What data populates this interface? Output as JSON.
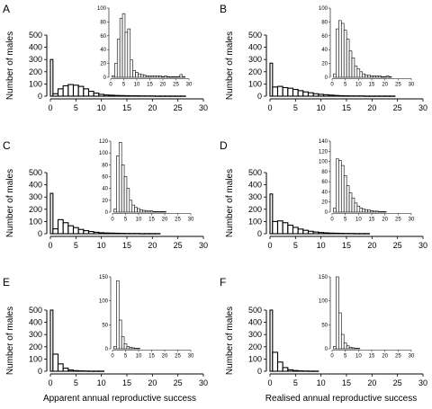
{
  "chart_data": [
    {
      "type": "bar",
      "panel": "A",
      "ylabel": "Number of males",
      "x": [
        0,
        1,
        2,
        3,
        4,
        5,
        6,
        7,
        8,
        9,
        10,
        11,
        12,
        13,
        14,
        15,
        16,
        17,
        18,
        19,
        20,
        21,
        22,
        23,
        24,
        25,
        26,
        27,
        28,
        29,
        30
      ],
      "values": [
        300,
        20,
        60,
        85,
        95,
        90,
        80,
        60,
        40,
        25,
        15,
        10,
        8,
        6,
        5,
        4,
        3,
        3,
        2,
        2,
        2,
        1,
        1,
        1,
        1,
        1,
        1,
        0,
        0,
        0,
        0
      ],
      "xlim": [
        0,
        30
      ],
      "ylim": [
        0,
        500
      ],
      "xticks": [
        "0",
        "5",
        "10",
        "15",
        "20",
        "25",
        "30"
      ],
      "yticks": [
        "0",
        "100",
        "200",
        "300",
        "400",
        "500"
      ],
      "inset": {
        "x": [
          1,
          2,
          3,
          4,
          5,
          6,
          7,
          8,
          9,
          10,
          11,
          12,
          13,
          14,
          15,
          16,
          17,
          18,
          19,
          20,
          21,
          22,
          23,
          24,
          25,
          26,
          27,
          28,
          29,
          30
        ],
        "values": [
          2,
          20,
          55,
          85,
          92,
          65,
          70,
          25,
          10,
          7,
          5,
          4,
          3,
          2,
          2,
          2,
          2,
          2,
          2,
          1,
          2,
          1,
          1,
          1,
          1,
          1,
          4,
          1,
          0,
          0
        ],
        "xlim": [
          0,
          30
        ],
        "ylim": [
          0,
          100
        ],
        "xticks": [
          "0",
          "5",
          "10",
          "15",
          "20",
          "25",
          "30"
        ],
        "yticks": [
          "0",
          "20",
          "40",
          "60",
          "80",
          "100"
        ]
      }
    },
    {
      "type": "bar",
      "panel": "B",
      "ylabel": "Number of males",
      "x": [
        0,
        1,
        2,
        3,
        4,
        5,
        6,
        7,
        8,
        9,
        10,
        11,
        12,
        13,
        14,
        15,
        16,
        17,
        18,
        19,
        20,
        21,
        22,
        23,
        24,
        25,
        26,
        27,
        28,
        29,
        30
      ],
      "values": [
        270,
        75,
        80,
        70,
        65,
        55,
        45,
        35,
        28,
        20,
        15,
        12,
        9,
        6,
        4,
        3,
        2,
        2,
        2,
        1,
        1,
        1,
        1,
        1,
        1,
        0,
        0,
        0,
        0,
        0,
        0
      ],
      "xlim": [
        0,
        30
      ],
      "ylim": [
        0,
        500
      ],
      "xticks": [
        "0",
        "5",
        "10",
        "15",
        "20",
        "25",
        "30"
      ],
      "yticks": [
        "0",
        "100",
        "200",
        "300",
        "400",
        "500"
      ],
      "inset": {
        "x": [
          1,
          2,
          3,
          4,
          5,
          6,
          7,
          8,
          9,
          10,
          11,
          12,
          13,
          14,
          15,
          16,
          17,
          18,
          19,
          20,
          21,
          22,
          23,
          24,
          25,
          26,
          27,
          28,
          29,
          30
        ],
        "values": [
          5,
          70,
          82,
          78,
          68,
          55,
          38,
          28,
          16,
          12,
          8,
          5,
          3,
          3,
          2,
          2,
          2,
          2,
          1,
          1,
          2,
          1,
          0,
          0,
          0,
          0,
          0,
          0,
          0,
          0
        ],
        "xlim": [
          0,
          30
        ],
        "ylim": [
          0,
          100
        ],
        "xticks": [
          "0",
          "5",
          "10",
          "15",
          "20",
          "25",
          "30"
        ],
        "yticks": [
          "0",
          "20",
          "40",
          "60",
          "80",
          "100"
        ]
      }
    },
    {
      "type": "bar",
      "panel": "C",
      "ylabel": "Number of males",
      "x": [
        0,
        1,
        2,
        3,
        4,
        5,
        6,
        7,
        8,
        9,
        10,
        11,
        12,
        13,
        14,
        15,
        16,
        17,
        18,
        19,
        20,
        21,
        22,
        23,
        24,
        25,
        26,
        27,
        28,
        29,
        30
      ],
      "values": [
        330,
        40,
        115,
        90,
        65,
        50,
        35,
        25,
        18,
        12,
        8,
        6,
        5,
        4,
        3,
        2,
        2,
        2,
        1,
        1,
        1,
        1,
        0,
        0,
        0,
        0,
        0,
        0,
        0,
        0,
        0
      ],
      "xlim": [
        0,
        30
      ],
      "ylim": [
        0,
        500
      ],
      "xticks": [
        "0",
        "5",
        "10",
        "15",
        "20",
        "25",
        "30"
      ],
      "yticks": [
        "0",
        "100",
        "200",
        "300",
        "400",
        "500"
      ],
      "inset": {
        "x": [
          1,
          2,
          3,
          4,
          5,
          6,
          7,
          8,
          9,
          10,
          11,
          12,
          13,
          14,
          15,
          16,
          17,
          18,
          19,
          20,
          21,
          22,
          23,
          24,
          25,
          26,
          27,
          28,
          29,
          30
        ],
        "values": [
          5,
          95,
          118,
          80,
          60,
          40,
          20,
          12,
          8,
          6,
          4,
          3,
          2,
          2,
          2,
          1,
          1,
          1,
          1,
          1,
          0,
          0,
          0,
          0,
          0,
          0,
          0,
          0,
          0,
          0
        ],
        "xlim": [
          0,
          30
        ],
        "ylim": [
          0,
          120
        ],
        "xticks": [
          "0",
          "5",
          "10",
          "15",
          "20",
          "25",
          "30"
        ],
        "yticks": [
          "0",
          "20",
          "40",
          "60",
          "80",
          "100",
          "120"
        ]
      }
    },
    {
      "type": "bar",
      "panel": "D",
      "ylabel": "Number of males",
      "x": [
        0,
        1,
        2,
        3,
        4,
        5,
        6,
        7,
        8,
        9,
        10,
        11,
        12,
        13,
        14,
        15,
        16,
        17,
        18,
        19,
        20,
        21,
        22,
        23,
        24,
        25,
        26,
        27,
        28,
        29,
        30
      ],
      "values": [
        325,
        100,
        105,
        90,
        70,
        52,
        38,
        28,
        20,
        14,
        10,
        7,
        5,
        4,
        3,
        2,
        2,
        1,
        1,
        1,
        0,
        0,
        0,
        0,
        0,
        0,
        0,
        0,
        0,
        0,
        0
      ],
      "xlim": [
        0,
        30
      ],
      "ylim": [
        0,
        500
      ],
      "xticks": [
        "0",
        "5",
        "10",
        "15",
        "20",
        "25",
        "30"
      ],
      "yticks": [
        "0",
        "100",
        "200",
        "300",
        "400",
        "500"
      ],
      "inset": {
        "x": [
          1,
          2,
          3,
          4,
          5,
          6,
          7,
          8,
          9,
          10,
          11,
          12,
          13,
          14,
          15,
          16,
          17,
          18,
          19,
          20,
          21,
          22,
          23,
          24,
          25,
          26,
          27,
          28,
          29,
          30
        ],
        "values": [
          8,
          105,
          102,
          92,
          72,
          52,
          38,
          28,
          18,
          12,
          8,
          6,
          5,
          4,
          3,
          2,
          2,
          1,
          1,
          1,
          0,
          0,
          0,
          0,
          0,
          0,
          0,
          0,
          0,
          0
        ],
        "xlim": [
          0,
          30
        ],
        "ylim": [
          0,
          140
        ],
        "xticks": [
          "0",
          "5",
          "10",
          "15",
          "20",
          "25",
          "30"
        ],
        "yticks": [
          "0",
          "20",
          "40",
          "60",
          "80",
          "100",
          "120",
          "140"
        ]
      }
    },
    {
      "type": "bar",
      "panel": "E",
      "ylabel": "Number of males",
      "x": [
        0,
        1,
        2,
        3,
        4,
        5,
        6,
        7,
        8,
        9,
        10,
        11,
        12,
        13,
        14,
        15,
        16,
        17,
        18,
        19,
        20,
        21,
        22,
        23,
        24,
        25,
        26,
        27,
        28,
        29,
        30
      ],
      "values": [
        505,
        140,
        60,
        25,
        10,
        5,
        3,
        2,
        1,
        1,
        1,
        0,
        0,
        0,
        0,
        0,
        0,
        0,
        0,
        0,
        0,
        0,
        0,
        0,
        0,
        0,
        0,
        0,
        0,
        0,
        0
      ],
      "xlim": [
        0,
        30
      ],
      "ylim": [
        0,
        500
      ],
      "xticks": [
        "0",
        "5",
        "10",
        "15",
        "20",
        "25",
        "30"
      ],
      "yticks": [
        "0",
        "100",
        "200",
        "300",
        "400",
        "500"
      ],
      "inset": {
        "x": [
          1,
          2,
          3,
          4,
          5,
          6,
          7,
          8,
          9,
          10,
          11,
          12,
          13,
          14,
          15,
          16,
          17,
          18,
          19,
          20,
          21,
          22,
          23,
          24,
          25,
          26,
          27,
          28,
          29,
          30
        ],
        "values": [
          5,
          142,
          60,
          25,
          10,
          5,
          3,
          2,
          1,
          1,
          0,
          0,
          0,
          0,
          0,
          0,
          0,
          0,
          0,
          0,
          0,
          0,
          0,
          0,
          0,
          0,
          0,
          0,
          0,
          0
        ],
        "xlim": [
          0,
          30
        ],
        "ylim": [
          0,
          150
        ],
        "xticks": [
          "0",
          "5",
          "10",
          "15",
          "20",
          "25",
          "30"
        ],
        "yticks": [
          "0",
          "50",
          "100",
          "150"
        ]
      }
    },
    {
      "type": "bar",
      "panel": "F",
      "ylabel": "Number of males",
      "x": [
        0,
        1,
        2,
        3,
        4,
        5,
        6,
        7,
        8,
        9,
        10,
        11,
        12,
        13,
        14,
        15,
        16,
        17,
        18,
        19,
        20,
        21,
        22,
        23,
        24,
        25,
        26,
        27,
        28,
        29,
        30
      ],
      "values": [
        500,
        155,
        75,
        30,
        12,
        6,
        3,
        2,
        1,
        1,
        0,
        0,
        0,
        0,
        0,
        0,
        0,
        0,
        0,
        0,
        0,
        0,
        0,
        0,
        0,
        0,
        0,
        0,
        0,
        0,
        0
      ],
      "xlim": [
        0,
        30
      ],
      "ylim": [
        0,
        500
      ],
      "xticks": [
        "0",
        "5",
        "10",
        "15",
        "20",
        "25",
        "30"
      ],
      "yticks": [
        "0",
        "100",
        "200",
        "300",
        "400",
        "500"
      ],
      "inset": {
        "x": [
          1,
          2,
          3,
          4,
          5,
          6,
          7,
          8,
          9,
          10,
          11,
          12,
          13,
          14,
          15,
          16,
          17,
          18,
          19,
          20,
          21,
          22,
          23,
          24,
          25,
          26,
          27,
          28,
          29,
          30
        ],
        "values": [
          5,
          155,
          75,
          30,
          12,
          6,
          3,
          2,
          1,
          1,
          0,
          0,
          0,
          0,
          0,
          0,
          0,
          0,
          0,
          0,
          0,
          0,
          0,
          0,
          0,
          0,
          0,
          0,
          0,
          0
        ],
        "xlim": [
          0,
          30
        ],
        "ylim": [
          0,
          150
        ],
        "xticks": [
          "0",
          "5",
          "10",
          "15",
          "20",
          "25",
          "30"
        ],
        "yticks": [
          "0",
          "50",
          "100",
          "150"
        ]
      }
    }
  ],
  "xlabels": {
    "left": "Apparent annual reproductive success",
    "right": "Realised annual reproductive success"
  }
}
